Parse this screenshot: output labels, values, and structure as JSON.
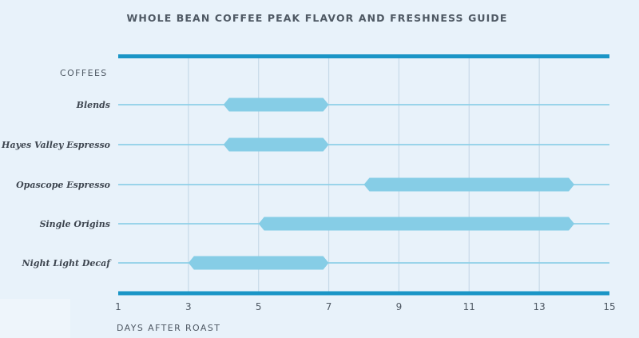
{
  "chart_data": {
    "type": "range-bar",
    "title": "WHOLE BEAN COFFEE PEAK FLAVOR AND FRESHNESS GUIDE",
    "category_header": "COFFEES",
    "xlabel": "DAYS AFTER ROAST",
    "xlim": [
      1,
      15
    ],
    "x_ticks": [
      1,
      3,
      5,
      7,
      9,
      11,
      13,
      15
    ],
    "grid": true,
    "colors": {
      "bar": "#86cde6",
      "row_line": "#8fd0e8",
      "frame": "#1a95c6",
      "grid": "#c7dae8",
      "text": "#4f5964",
      "category_text": "#3e4650"
    },
    "categories": [
      "Blends",
      "Hayes Valley Espresso",
      "Opascope Espresso",
      "Single Origins",
      "Night Light Decaf"
    ],
    "ranges": [
      {
        "category": "Blends",
        "start": 4,
        "end": 7
      },
      {
        "category": "Hayes Valley Espresso",
        "start": 4,
        "end": 7
      },
      {
        "category": "Opascope Espresso",
        "start": 8,
        "end": 14
      },
      {
        "category": "Single Origins",
        "start": 5,
        "end": 14
      },
      {
        "category": "Night Light Decaf",
        "start": 3,
        "end": 7
      }
    ]
  }
}
